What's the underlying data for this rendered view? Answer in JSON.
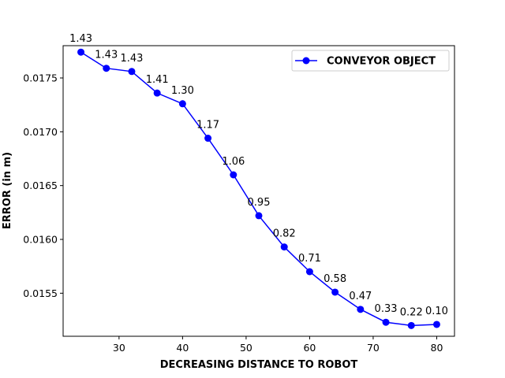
{
  "chart_data": {
    "type": "line",
    "title": "",
    "xlabel": "DECREASING DISTANCE TO ROBOT",
    "ylabel": "ERROR (in m)",
    "xlim": [
      21.2,
      82.8
    ],
    "ylim": [
      0.0151,
      0.0178
    ],
    "xticks": [
      30,
      40,
      50,
      60,
      70,
      80
    ],
    "xtick_labels": [
      "30",
      "40",
      "50",
      "60",
      "70",
      "80"
    ],
    "yticks": [
      0.0155,
      0.016,
      0.0165,
      0.017,
      0.0175
    ],
    "ytick_labels": [
      "0.0155",
      "0.0160",
      "0.0165",
      "0.0170",
      "0.0175"
    ],
    "grid": false,
    "legend_position": "top-right",
    "series": [
      {
        "name": "CONVEYOR OBJECT",
        "color": "#0000ff",
        "marker": "circle",
        "x": [
          24,
          28,
          32,
          36,
          40,
          44,
          48,
          52,
          56,
          60,
          64,
          68,
          72,
          76,
          80
        ],
        "y": [
          0.01774,
          0.01759,
          0.01756,
          0.01736,
          0.01726,
          0.01694,
          0.0166,
          0.01622,
          0.01593,
          0.0157,
          0.01551,
          0.01535,
          0.01523,
          0.0152,
          0.01521
        ],
        "labels": [
          "1.43",
          "1.43",
          "1.43",
          "1.41",
          "1.30",
          "1.17",
          "1.06",
          "0.95",
          "0.82",
          "0.71",
          "0.58",
          "0.47",
          "0.33",
          "0.22",
          "0.10"
        ]
      }
    ]
  }
}
